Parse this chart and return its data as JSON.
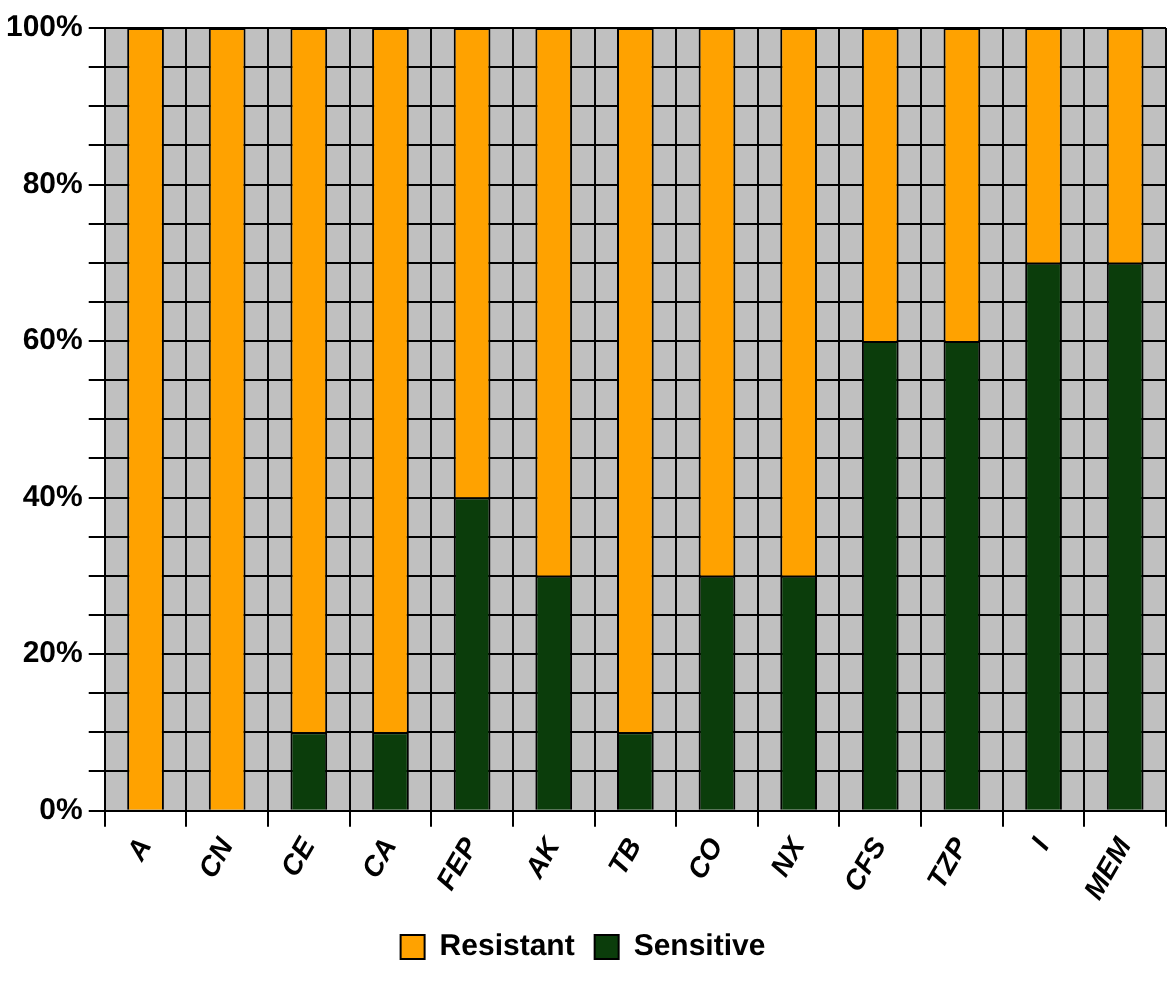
{
  "chart_data": {
    "type": "bar",
    "stacked": true,
    "categories": [
      "A",
      "CN",
      "CE",
      "CA",
      "FEP",
      "AK",
      "TB",
      "CO",
      "NX",
      "CFS",
      "TZP",
      "I",
      "MEM"
    ],
    "series": [
      {
        "name": "Sensitive",
        "color": "#0b3d0b",
        "values": [
          0,
          0,
          10,
          10,
          40,
          30,
          10,
          30,
          30,
          60,
          60,
          70,
          70
        ]
      },
      {
        "name": "Resistant",
        "color": "#ffa200",
        "values": [
          100,
          100,
          90,
          90,
          60,
          70,
          90,
          70,
          70,
          40,
          40,
          30,
          30
        ]
      }
    ],
    "ylim": [
      0,
      100
    ],
    "yticks": [
      {
        "value": 0,
        "label": "0%"
      },
      {
        "value": 5,
        "label": null
      },
      {
        "value": 10,
        "label": null
      },
      {
        "value": 15,
        "label": null
      },
      {
        "value": 20,
        "label": "20%"
      },
      {
        "value": 25,
        "label": null
      },
      {
        "value": 30,
        "label": null
      },
      {
        "value": 35,
        "label": null
      },
      {
        "value": 40,
        "label": "40%"
      },
      {
        "value": 45,
        "label": null
      },
      {
        "value": 50,
        "label": null
      },
      {
        "value": 55,
        "label": null
      },
      {
        "value": 60,
        "label": "60%"
      },
      {
        "value": 65,
        "label": null
      },
      {
        "value": 70,
        "label": null
      },
      {
        "value": 75,
        "label": null
      },
      {
        "value": 80,
        "label": "80%"
      },
      {
        "value": 85,
        "label": null
      },
      {
        "value": 90,
        "label": null
      },
      {
        "value": 95,
        "label": null
      },
      {
        "value": 100,
        "label": "100%"
      }
    ],
    "grid": true,
    "legend": "bottom"
  }
}
